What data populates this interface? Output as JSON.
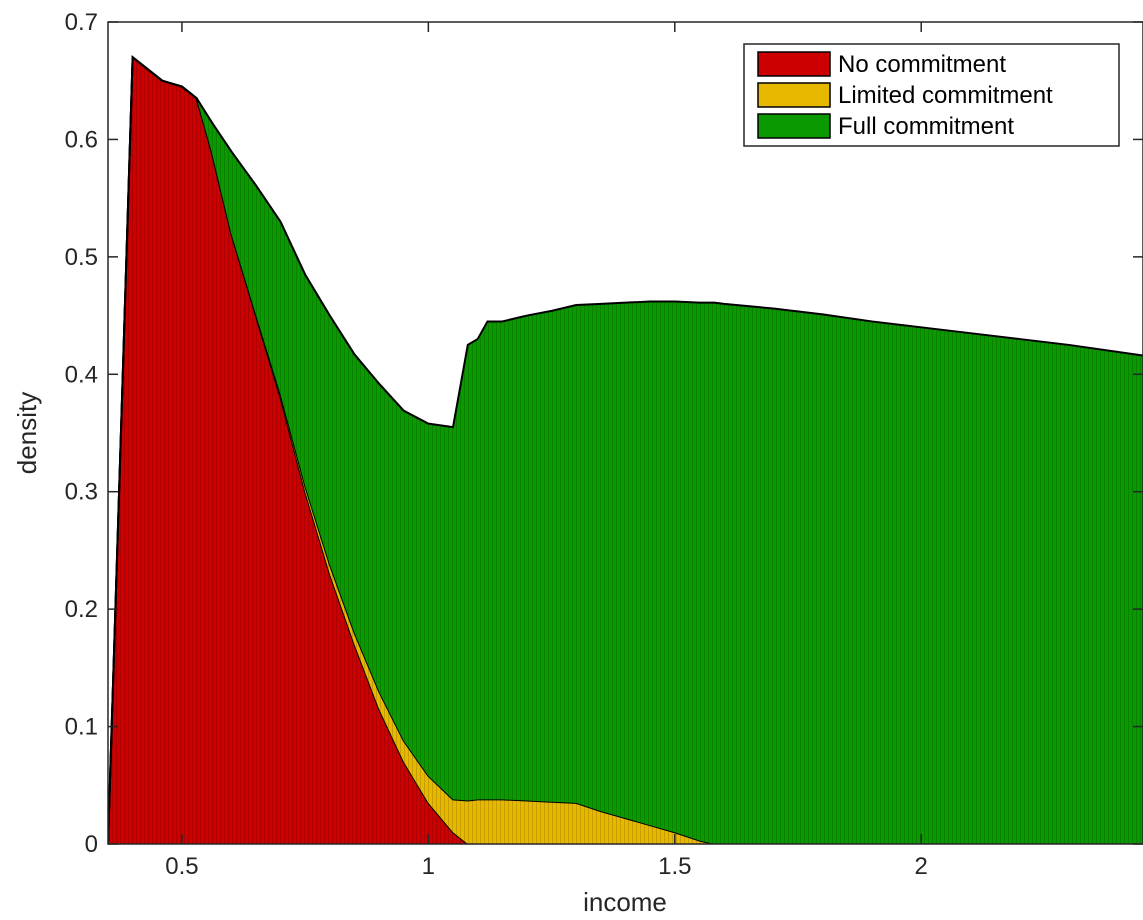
{
  "chart_data": {
    "type": "area",
    "stacked": true,
    "title": "",
    "xlabel": "income",
    "ylabel": "density",
    "xlim": [
      0.35,
      2.45
    ],
    "ylim": [
      0,
      0.7
    ],
    "xticks": [
      0.5,
      1,
      1.5,
      2
    ],
    "xtick_labels": [
      "0.5",
      "1",
      "1.5",
      "2"
    ],
    "yticks": [
      0,
      0.1,
      0.2,
      0.3,
      0.4,
      0.5,
      0.6,
      0.7
    ],
    "ytick_labels": [
      "0",
      "0.1",
      "0.2",
      "0.3",
      "0.4",
      "0.5",
      "0.6",
      "0.7"
    ],
    "grid": false,
    "legend_position": "top-right",
    "x": [
      0.35,
      0.38,
      0.4,
      0.43,
      0.46,
      0.5,
      0.53,
      0.56,
      0.6,
      0.65,
      0.7,
      0.75,
      0.8,
      0.85,
      0.9,
      0.95,
      1.0,
      1.05,
      1.08,
      1.1,
      1.12,
      1.15,
      1.2,
      1.25,
      1.3,
      1.35,
      1.4,
      1.45,
      1.5,
      1.55,
      1.58,
      1.6,
      1.7,
      1.8,
      1.9,
      2.0,
      2.1,
      2.2,
      2.3,
      2.45
    ],
    "series": [
      {
        "name": "No commitment",
        "color": "#cc0000",
        "values": [
          0.0,
          0.4,
          0.67,
          0.66,
          0.65,
          0.645,
          0.635,
          0.59,
          0.52,
          0.45,
          0.38,
          0.3,
          0.23,
          0.17,
          0.115,
          0.07,
          0.035,
          0.01,
          0.0,
          0.0,
          0.0,
          0.0,
          0.0,
          0.0,
          0.0,
          0.0,
          0.0,
          0.0,
          0.0,
          0.0,
          0.0,
          0.0,
          0.0,
          0.0,
          0.0,
          0.0,
          0.0,
          0.0,
          0.0,
          0.0
        ]
      },
      {
        "name": "Limited commitment",
        "color": "#e6b800",
        "values": [
          0.0,
          0.0,
          0.0,
          0.0,
          0.0,
          0.0,
          0.0,
          0.0,
          0.0,
          0.001,
          0.003,
          0.005,
          0.008,
          0.01,
          0.015,
          0.018,
          0.023,
          0.028,
          0.037,
          0.038,
          0.038,
          0.038,
          0.037,
          0.036,
          0.035,
          0.028,
          0.022,
          0.016,
          0.01,
          0.003,
          0.0,
          0.0,
          0.0,
          0.0,
          0.0,
          0.0,
          0.0,
          0.0,
          0.0,
          0.0
        ]
      },
      {
        "name": "Full commitment",
        "color": "#0a9900",
        "values": [
          0.0,
          0.0,
          0.0,
          0.0,
          0.0,
          0.0,
          0.0,
          0.025,
          0.07,
          0.11,
          0.147,
          0.18,
          0.212,
          0.237,
          0.262,
          0.281,
          0.3,
          0.317,
          0.388,
          0.392,
          0.407,
          0.407,
          0.413,
          0.418,
          0.424,
          0.432,
          0.439,
          0.446,
          0.452,
          0.458,
          0.461,
          0.46,
          0.456,
          0.451,
          0.445,
          0.44,
          0.435,
          0.43,
          0.425,
          0.416
        ]
      }
    ]
  }
}
